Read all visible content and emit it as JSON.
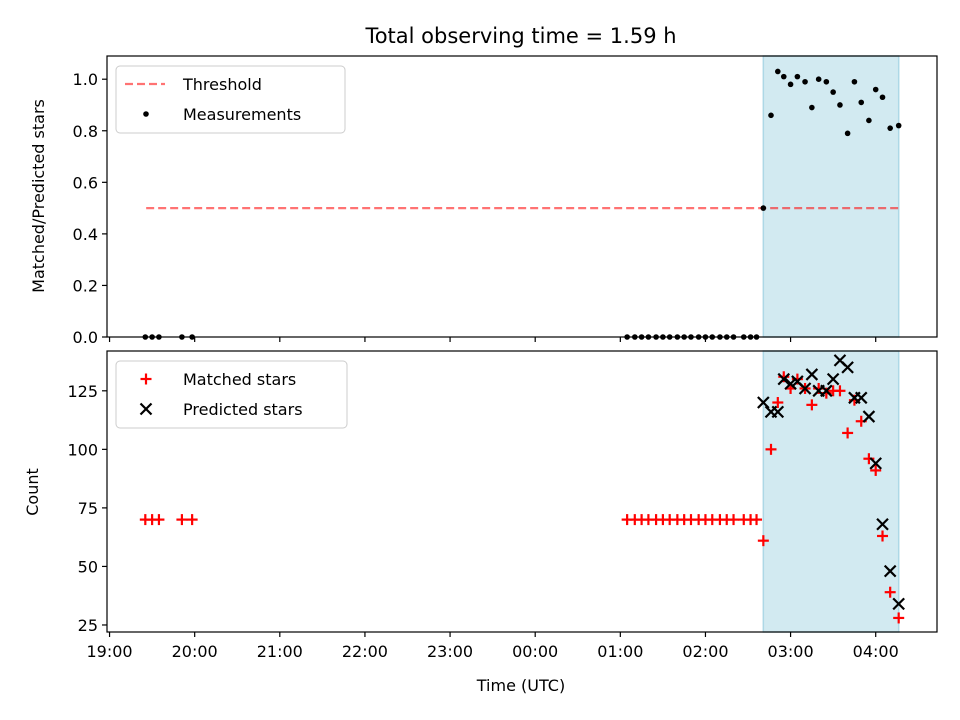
{
  "chart_data": {
    "title": "Total observing time = 1.59 h",
    "x_axis": {
      "label": "Time (UTC)",
      "range_hours": [
        18.97,
        28.72
      ],
      "ticks": [
        19,
        20,
        21,
        22,
        23,
        24,
        25,
        26,
        27,
        28
      ],
      "tick_labels": [
        "19:00",
        "20:00",
        "21:00",
        "22:00",
        "23:00",
        "00:00",
        "01:00",
        "02:00",
        "03:00",
        "04:00"
      ]
    },
    "highlight_span_hours": [
      26.68,
      28.27
    ],
    "highlight_color": "#add8e6",
    "panels": [
      {
        "type": "scatter",
        "ylabel": "Matched/Predicted stars",
        "ylim": [
          0,
          1.09
        ],
        "yticks": [
          0,
          0.2,
          0.4,
          0.6,
          0.8,
          1.0
        ],
        "ytick_labels": [
          "0.0",
          "0.2",
          "0.4",
          "0.6",
          "0.8",
          "1.0"
        ],
        "legend_position": "upper left",
        "threshold": {
          "name": "Threshold",
          "value": 0.5,
          "x_range_hours": [
            19.43,
            28.27
          ],
          "color": "#ff0000"
        },
        "series": [
          {
            "name": "Measurements",
            "color": "#000000",
            "x": [
              19.42,
              19.5,
              19.58,
              19.85,
              19.97,
              25.08,
              25.17,
              25.25,
              25.33,
              25.42,
              25.5,
              25.58,
              25.67,
              25.75,
              25.83,
              25.92,
              26.0,
              26.08,
              26.17,
              26.25,
              26.33,
              26.45,
              26.53,
              26.6,
              26.68,
              26.77,
              26.85,
              26.92,
              27.0,
              27.08,
              27.17,
              27.25,
              27.33,
              27.42,
              27.5,
              27.58,
              27.67,
              27.75,
              27.83,
              27.92,
              28.0,
              28.08,
              28.17,
              28.27
            ],
            "y": [
              0,
              0,
              0,
              0,
              0,
              0,
              0,
              0,
              0,
              0,
              0,
              0,
              0,
              0,
              0,
              0,
              0,
              0,
              0,
              0,
              0,
              0,
              0,
              0,
              0.5,
              0.86,
              1.03,
              1.01,
              0.98,
              1.01,
              0.99,
              0.89,
              1.0,
              0.99,
              0.95,
              0.9,
              0.79,
              0.99,
              0.91,
              0.84,
              0.96,
              0.93,
              0.81,
              0.82
            ]
          }
        ]
      },
      {
        "type": "scatter",
        "ylabel": "Count",
        "ylim": [
          22,
          142
        ],
        "yticks": [
          25,
          50,
          75,
          100,
          125
        ],
        "ytick_labels": [
          "25",
          "50",
          "75",
          "100",
          "125"
        ],
        "legend_position": "upper left",
        "series": [
          {
            "name": "Matched stars",
            "marker": "+",
            "color": "#ff0000",
            "x": [
              19.42,
              19.5,
              19.58,
              19.85,
              19.97,
              25.08,
              25.17,
              25.25,
              25.33,
              25.42,
              25.5,
              25.58,
              25.67,
              25.75,
              25.83,
              25.92,
              26.0,
              26.08,
              26.17,
              26.25,
              26.33,
              26.45,
              26.53,
              26.6,
              26.68,
              26.77,
              26.85,
              26.92,
              27.0,
              27.08,
              27.17,
              27.25,
              27.33,
              27.42,
              27.5,
              27.58,
              27.67,
              27.75,
              27.83,
              27.92,
              28.0,
              28.08,
              28.17,
              28.27
            ],
            "y": [
              70,
              70,
              70,
              70,
              70,
              70,
              70,
              70,
              70,
              70,
              70,
              70,
              70,
              70,
              70,
              70,
              70,
              70,
              70,
              70,
              70,
              70,
              70,
              70,
              61,
              100,
              120,
              131,
              126,
              130,
              126,
              119,
              126,
              124,
              125,
              125,
              107,
              121,
              112,
              96,
              91,
              63,
              39,
              28
            ]
          },
          {
            "name": "Predicted stars",
            "marker": "x",
            "color": "#000000",
            "x": [
              26.68,
              26.77,
              26.85,
              26.92,
              27.0,
              27.08,
              27.17,
              27.25,
              27.33,
              27.42,
              27.5,
              27.58,
              27.67,
              27.75,
              27.83,
              27.92,
              28.0,
              28.08,
              28.17,
              28.27
            ],
            "y": [
              120,
              116,
              116,
              130,
              128,
              129,
              126,
              132,
              125,
              125,
              130,
              138,
              135,
              122,
              122,
              114,
              94,
              68,
              48,
              34
            ]
          }
        ]
      }
    ]
  }
}
